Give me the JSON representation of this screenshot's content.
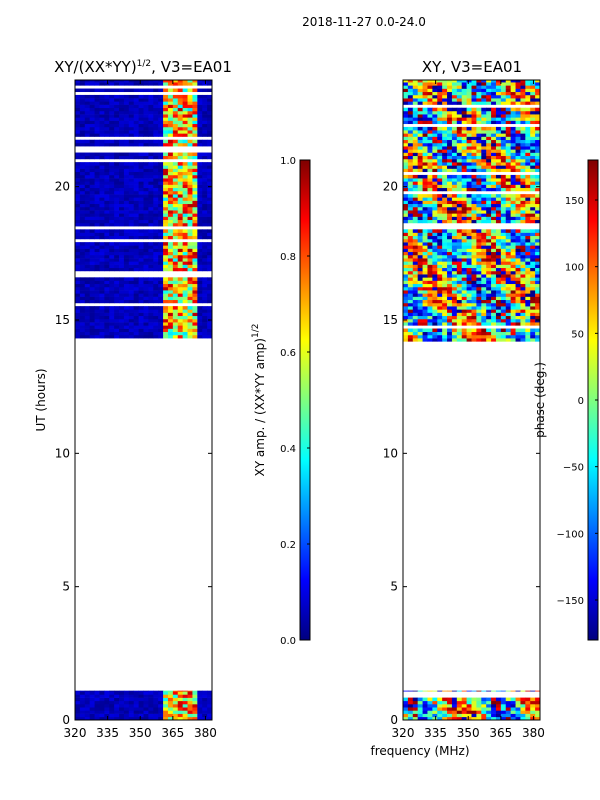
{
  "suptitle": "2018-11-27 0.0-24.0",
  "colors": {
    "jet": [
      "#00007f",
      "#0000ff",
      "#007fff",
      "#00ffff",
      "#7fff7f",
      "#ffff00",
      "#ff7f00",
      "#ff0000",
      "#7f0000"
    ],
    "background": "#ffffff",
    "axis": "#000000"
  },
  "chart_data": [
    {
      "type": "heatmap",
      "name": "amp",
      "title": "XY/(XX*YY)",
      "title_exp": "1/2",
      "title_rest": ", V3=EA01",
      "ylabel": "UT (hours)",
      "xlabel": "",
      "xlim": [
        320,
        383
      ],
      "ylim": [
        0,
        24
      ],
      "x_tick_values": [
        320,
        335,
        350,
        365,
        380
      ],
      "x_tick_labels": [
        "320",
        "335",
        "350",
        "365",
        "380"
      ],
      "y_tick_values": [
        0,
        5,
        10,
        15,
        20
      ],
      "y_tick_labels": [
        "0",
        "5",
        "10",
        "15",
        "20"
      ],
      "data_intervals_hours": [
        [
          0.0,
          1.1
        ],
        [
          14.2,
          24.0
        ]
      ],
      "high_band_mhz": [
        360,
        376
      ],
      "colorbar": {
        "label": "XY amp. / (XX*YY amp)",
        "label_exp": "1/2",
        "range": [
          0.0,
          1.0
        ],
        "tick_values": [
          0.0,
          0.2,
          0.4,
          0.6,
          0.8,
          1.0
        ],
        "tick_labels": [
          "0.0",
          "0.2",
          "0.4",
          "0.6",
          "0.8",
          "1.0"
        ]
      }
    },
    {
      "type": "heatmap",
      "name": "phase",
      "title": "XY, V3=EA01",
      "ylabel": "",
      "xlabel": "frequency (MHz)",
      "xlim": [
        320,
        383
      ],
      "ylim": [
        0,
        24
      ],
      "x_tick_values": [
        320,
        335,
        350,
        365,
        380
      ],
      "x_tick_labels": [
        "320",
        "335",
        "350",
        "365",
        "380"
      ],
      "y_tick_values": [
        0,
        5,
        10,
        15,
        20
      ],
      "y_tick_labels": [
        "0",
        "5",
        "10",
        "15",
        "20"
      ],
      "data_intervals_hours": [
        [
          0.0,
          1.1
        ],
        [
          14.2,
          24.0
        ]
      ],
      "colorbar": {
        "label": "phase (deg.)",
        "range": [
          -180,
          180
        ],
        "tick_values": [
          -150,
          -100,
          -50,
          0,
          50,
          100,
          150
        ],
        "tick_labels": [
          "−150",
          "−100",
          "−50",
          "0",
          "50",
          "100",
          "150"
        ]
      }
    }
  ]
}
